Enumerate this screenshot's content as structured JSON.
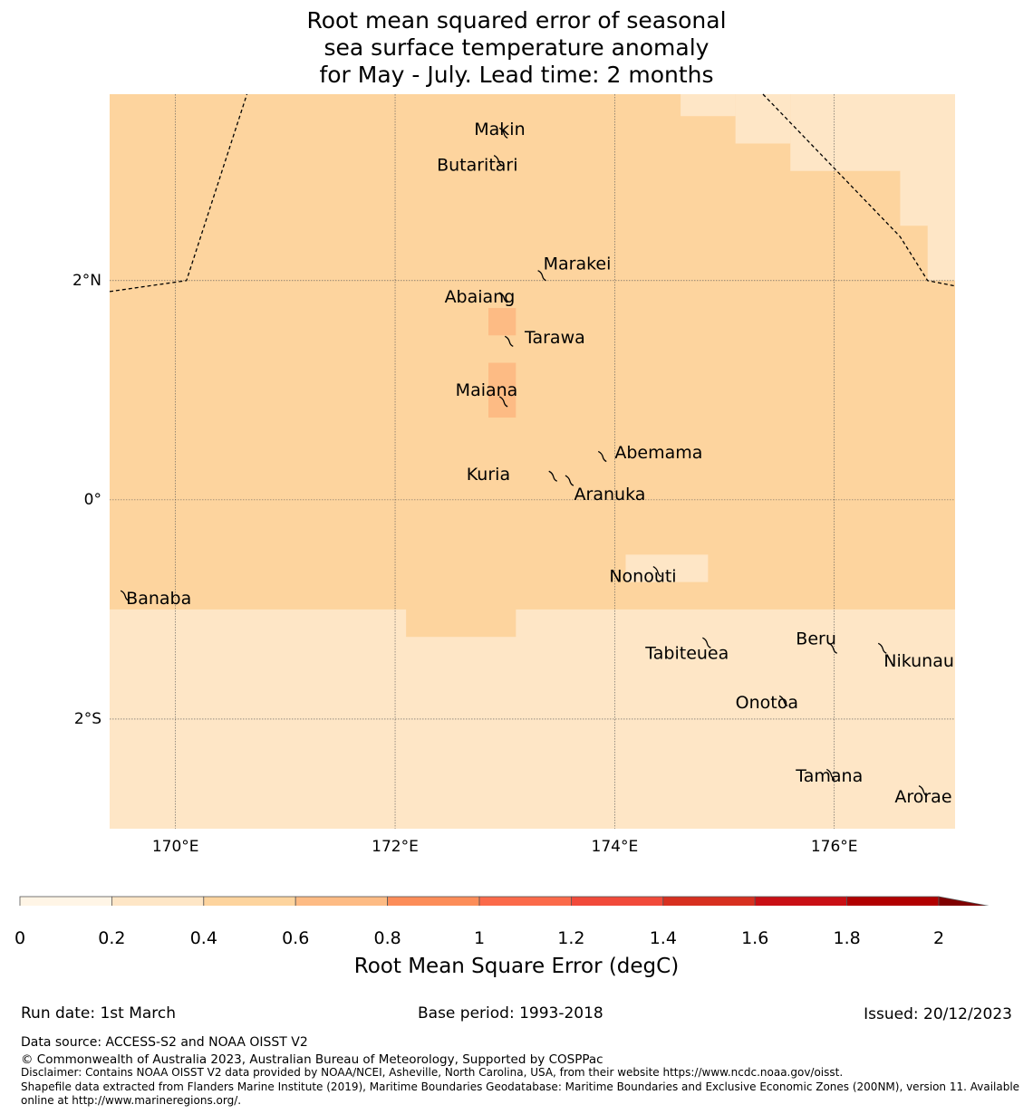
{
  "title": {
    "line1": "Root mean squared error of seasonal",
    "line2": "sea surface temperature anomaly",
    "line3": "for May - July. Lead time: 2 months"
  },
  "map": {
    "lon_range": [
      169.4,
      177.1
    ],
    "lat_range": [
      -3.0,
      3.7
    ],
    "x_ticks": [
      {
        "value": 170,
        "label": "170°E"
      },
      {
        "value": 172,
        "label": "172°E"
      },
      {
        "value": 174,
        "label": "174°E"
      },
      {
        "value": 176,
        "label": "176°E"
      }
    ],
    "y_ticks": [
      {
        "value": 2,
        "label": "2°N"
      },
      {
        "value": 0,
        "label": "0°"
      },
      {
        "value": -2,
        "label": "2°S"
      }
    ],
    "colors": {
      "band_0_2_0_4": "#fee6c6",
      "band_0_4_0_6": "#fdd49e",
      "band_0_6_0_8": "#fdbb84",
      "boundary": "#000000",
      "grid": "#555555"
    },
    "rmse_regions": [
      {
        "band": "0.2-0.4",
        "lon": [
          169.4,
          177.1
        ],
        "lat": [
          -3.0,
          3.7
        ]
      },
      {
        "band": "0.4-0.6",
        "lon": [
          169.4,
          177.1
        ],
        "lat": [
          -1.0,
          3.7
        ]
      },
      {
        "band": "0.4-0.6",
        "lon": [
          174.1,
          177.1
        ],
        "lat": [
          -0.75,
          3.7
        ]
      },
      {
        "band": "0.4-0.6",
        "lon": [
          172.1,
          173.1
        ],
        "lat": [
          -1.25,
          3.7
        ]
      },
      {
        "band": "0.4-0.6",
        "lon": [
          170.6,
          171.35
        ],
        "lat": [
          -0.75,
          3.7
        ]
      },
      {
        "band": "0.4-0.6",
        "lon": [
          173.9,
          174.1
        ],
        "lat": [
          -0.5,
          3.7
        ]
      },
      {
        "band": "0.2-0.4",
        "lon": [
          174.1,
          174.85
        ],
        "lat": [
          -0.75,
          -0.5
        ]
      },
      {
        "band": "0.2-0.4",
        "lon": [
          174.6,
          175.1
        ],
        "lat": [
          3.5,
          3.7
        ]
      },
      {
        "band": "0.2-0.4",
        "lon": [
          175.1,
          175.6
        ],
        "lat": [
          3.25,
          3.7
        ]
      },
      {
        "band": "0.2-0.4",
        "lon": [
          175.6,
          177.1
        ],
        "lat": [
          3.0,
          3.7
        ]
      },
      {
        "band": "0.2-0.4",
        "lon": [
          176.6,
          177.1
        ],
        "lat": [
          2.5,
          3.7
        ]
      },
      {
        "band": "0.2-0.4",
        "lon": [
          176.85,
          177.1
        ],
        "lat": [
          2.0,
          3.7
        ]
      },
      {
        "band": "0.6-0.8",
        "lon": [
          172.85,
          173.1
        ],
        "lat": [
          1.5,
          1.75
        ]
      },
      {
        "band": "0.6-0.8",
        "lon": [
          172.85,
          173.1
        ],
        "lat": [
          0.75,
          1.25
        ]
      }
    ],
    "eez_lines": [
      [
        [
          169.4,
          1.9
        ],
        [
          170.1,
          2.0
        ],
        [
          170.65,
          3.7
        ]
      ],
      [
        [
          175.35,
          3.7
        ],
        [
          176.6,
          2.4
        ],
        [
          176.85,
          2.0
        ],
        [
          177.1,
          1.95
        ]
      ]
    ],
    "islands": [
      {
        "name": "Makin",
        "lon": 173.0,
        "lat": 3.35,
        "label_lon": 172.72,
        "label_lat": 3.33
      },
      {
        "name": "Butaritari",
        "lon": 172.95,
        "lat": 3.1,
        "label_lon": 172.38,
        "label_lat": 3.0
      },
      {
        "name": "Marakei",
        "lon": 173.35,
        "lat": 2.05,
        "label_lon": 173.35,
        "label_lat": 2.1
      },
      {
        "name": "Abaiang",
        "lon": 173.0,
        "lat": 1.85,
        "label_lon": 172.45,
        "label_lat": 1.8
      },
      {
        "name": "Tarawa",
        "lon": 173.05,
        "lat": 1.45,
        "label_lon": 173.18,
        "label_lat": 1.43
      },
      {
        "name": "Maiana",
        "lon": 173.0,
        "lat": 0.9,
        "label_lon": 172.55,
        "label_lat": 0.95
      },
      {
        "name": "Abemama",
        "lon": 173.9,
        "lat": 0.4,
        "label_lon": 174.0,
        "label_lat": 0.38
      },
      {
        "name": "Kuria",
        "lon": 173.45,
        "lat": 0.22,
        "label_lon": 172.65,
        "label_lat": 0.18
      },
      {
        "name": "Aranuka",
        "lon": 173.6,
        "lat": 0.18,
        "label_lon": 173.63,
        "label_lat": 0.0
      },
      {
        "name": "Nonouti",
        "lon": 174.4,
        "lat": -0.65,
        "label_lon": 173.95,
        "label_lat": -0.75
      },
      {
        "name": "Banaba",
        "lon": 169.55,
        "lat": -0.87,
        "label_lon": 169.55,
        "label_lat": -0.95
      },
      {
        "name": "Tabiteuea",
        "lon": 174.85,
        "lat": -1.3,
        "label_lon": 174.28,
        "label_lat": -1.45
      },
      {
        "name": "Beru",
        "lon": 176.0,
        "lat": -1.35,
        "label_lon": 175.65,
        "label_lat": -1.32
      },
      {
        "name": "Nikunau",
        "lon": 176.45,
        "lat": -1.35,
        "label_lon": 176.45,
        "label_lat": -1.52
      },
      {
        "name": "Onotoa",
        "lon": 175.55,
        "lat": -1.83,
        "label_lon": 175.1,
        "label_lat": -1.9
      },
      {
        "name": "Tamana",
        "lon": 175.98,
        "lat": -2.5,
        "label_lon": 175.65,
        "label_lat": -2.57
      },
      {
        "name": "Arorae",
        "lon": 176.82,
        "lat": -2.65,
        "label_lon": 176.55,
        "label_lat": -2.76
      }
    ]
  },
  "colorbar": {
    "title": "Root Mean Square Error (degC)",
    "ticks": [
      "0",
      "0.2",
      "0.4",
      "0.6",
      "0.8",
      "1",
      "1.2",
      "1.4",
      "1.6",
      "1.8",
      "2"
    ],
    "colors": [
      "#fff5e6",
      "#fee6c6",
      "#fdd49e",
      "#fdbb84",
      "#fc8d59",
      "#fb6a4a",
      "#f14a3a",
      "#d7301f",
      "#c90f14",
      "#b10000"
    ],
    "extend_color": "#7f0000"
  },
  "footer": {
    "run_date": "Run date: 1st March",
    "base_period": "Base period: 1993-2018",
    "issued": "Issued: 20/12/2023",
    "data_source": "Data source: ACCESS-S2 and NOAA OISST V2",
    "copyright": "© Commonwealth of Australia 2023, Australian Bureau of Meteorology, Supported by COSPPac",
    "disclaimer": "Disclaimer: Contains NOAA OISST V2 data provided by NOAA/NCEI, Asheville, North Carolina, USA, from their website https://www.ncdc.noaa.gov/oisst.",
    "shapefile_1": "Shapefile data extracted from Flanders Marine Institute (2019), Maritime Boundaries Geodatabase: Maritime Boundaries and Exclusive Economic Zones (200NM), version 11. Available",
    "shapefile_2": "online at http://www.marineregions.org/."
  }
}
